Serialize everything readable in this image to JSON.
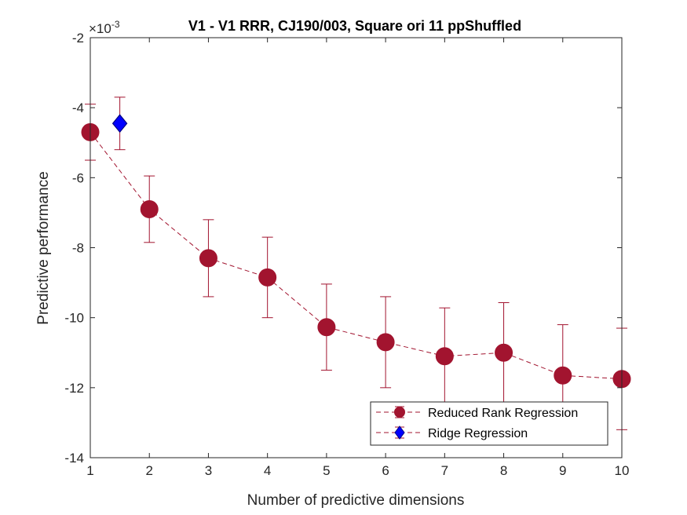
{
  "chart_data": {
    "type": "scatter",
    "title": "V1 - V1 RRR, CJ190/003, Square ori 11 ppShuffled",
    "xlabel": "Number of predictive dimensions",
    "ylabel": "Predictive performance",
    "y_exponent_base": "×10",
    "y_exponent_power": "-3",
    "xlim": [
      1,
      10
    ],
    "ylim": [
      -14,
      -2
    ],
    "xticks": [
      1,
      2,
      3,
      4,
      5,
      6,
      7,
      8,
      9,
      10
    ],
    "yticks": [
      -14,
      -12,
      -10,
      -8,
      -6,
      -4,
      -2
    ],
    "grid": false,
    "legend_position": "bottom-right",
    "series": [
      {
        "name": "Reduced Rank Regression",
        "color": "#a2142f",
        "marker": "circle",
        "line": "dashed",
        "x": [
          1,
          2,
          3,
          4,
          5,
          6,
          7,
          8,
          9,
          10
        ],
        "y": [
          -4.7,
          -6.9,
          -8.3,
          -8.85,
          -10.27,
          -10.7,
          -11.1,
          -11.0,
          -11.65,
          -11.75
        ],
        "err": [
          0.8,
          0.95,
          1.1,
          1.15,
          1.23,
          1.3,
          1.38,
          1.43,
          1.45,
          1.45
        ]
      },
      {
        "name": "Ridge Regression",
        "color": "#0000ff",
        "edge_color": "#000080",
        "marker": "diamond",
        "line": "dashed",
        "x": [
          1.5
        ],
        "y": [
          -4.45
        ],
        "err": [
          0.75
        ]
      }
    ]
  }
}
